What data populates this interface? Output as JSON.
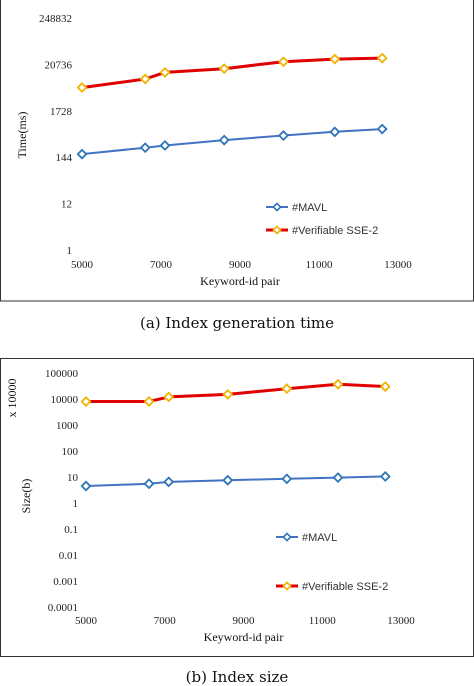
{
  "chart_data": [
    {
      "type": "line",
      "xlabel": "Keyword-id pair",
      "ylabel": "Time(ms)",
      "yscale": "log",
      "y_ticks": [
        1,
        12,
        144,
        1728,
        20736,
        248832
      ],
      "y_tick_labels": [
        "1",
        "12",
        "144",
        "1728",
        "20736",
        "248832"
      ],
      "x_ticks": [
        5000,
        7000,
        9000,
        11000,
        13000
      ],
      "xlim": [
        5000,
        13000
      ],
      "ylim": [
        1,
        248832
      ],
      "grid": false,
      "legend_position": "lower-right",
      "caption": "(a) Index generation time",
      "series": [
        {
          "name": "#MAVL",
          "color": "#4472C4",
          "x": [
            5000,
            6600,
            7100,
            8600,
            10100,
            11400,
            12600
          ],
          "y": [
            170,
            240,
            270,
            360,
            460,
            560,
            650
          ]
        },
        {
          "name": "#Verifiable SSE-2",
          "color": "#E00000",
          "x": [
            5000,
            6600,
            7100,
            8600,
            10100,
            11400,
            12600
          ],
          "y": [
            6000,
            9500,
            13500,
            16500,
            24000,
            27500,
            29000
          ]
        }
      ]
    },
    {
      "type": "line",
      "xlabel": "Keyword-id pair",
      "ylabel": "Size(b)",
      "y_multiplier": "x 10000",
      "yscale": "log",
      "y_ticks": [
        0.0001,
        0.001,
        0.01,
        0.1,
        1,
        10,
        100,
        1000,
        10000,
        100000
      ],
      "y_tick_labels": [
        "0.0001",
        "0.001",
        "0.01",
        "0.1",
        "1",
        "10",
        "100",
        "1000",
        "10000",
        "100000"
      ],
      "x_ticks": [
        5000,
        7000,
        9000,
        11000,
        13000
      ],
      "xlim": [
        5000,
        13000
      ],
      "ylim": [
        0.0001,
        100000
      ],
      "grid": false,
      "legend_position": "lower-right",
      "caption": "(b) Index size",
      "series": [
        {
          "name": "#MAVL",
          "color": "#4472C4",
          "x": [
            5000,
            6600,
            7100,
            8600,
            10100,
            11400,
            12600
          ],
          "y": [
            4.5,
            5.5,
            6.5,
            7.5,
            8.5,
            9.5,
            10.5
          ]
        },
        {
          "name": "#Verifiable SSE-2",
          "color": "#E00000",
          "x": [
            5000,
            6600,
            7100,
            8600,
            10100,
            11400,
            12600
          ],
          "y": [
            8000,
            8000,
            12000,
            15000,
            25000,
            37000,
            30000
          ]
        }
      ]
    }
  ]
}
